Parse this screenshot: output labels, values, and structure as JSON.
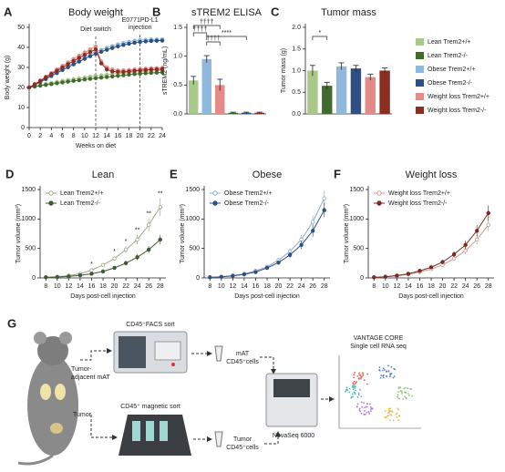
{
  "chart_data": [
    {
      "type": "line",
      "panel_label": "A",
      "title": "Body weight",
      "xlabel": "Weeks on diet",
      "ylabel": "Body weight (g)",
      "x": [
        0,
        1,
        2,
        3,
        4,
        5,
        6,
        7,
        8,
        9,
        10,
        11,
        12,
        13,
        14,
        15,
        16,
        17,
        18,
        19,
        20,
        21,
        22,
        23,
        24
      ],
      "xlim": [
        0,
        24
      ],
      "xticks": [
        0,
        2,
        4,
        6,
        8,
        10,
        12,
        14,
        16,
        18,
        20,
        22,
        24
      ],
      "ylim": [
        0,
        50
      ],
      "yticks": [
        0,
        10,
        20,
        30,
        40,
        50
      ],
      "annotations": [
        {
          "x": 12,
          "label": [
            "Diet switch"
          ]
        },
        {
          "x": 20,
          "label": [
            "E0771PD-L1",
            "injection"
          ]
        }
      ],
      "series": [
        {
          "name": "Lean Trem2+/+",
          "color": "#a9c98a",
          "values": [
            20,
            20.6,
            21.2,
            21.8,
            22.3,
            22.8,
            23.3,
            23.8,
            24.2,
            24.6,
            25,
            25.4,
            25.8,
            26.1,
            26.4,
            26.7,
            27,
            27.2,
            27.4,
            27.6,
            27.8,
            28,
            28.2,
            28.3,
            28.5
          ]
        },
        {
          "name": "Lean Trem2-/-",
          "color": "#3f6b2e",
          "values": [
            20,
            20.4,
            20.9,
            21.3,
            21.7,
            22.1,
            22.5,
            22.9,
            23.3,
            23.6,
            24,
            24.3,
            24.6,
            24.9,
            25.2,
            25.5,
            25.8,
            26.1,
            26.4,
            26.7,
            26.9,
            27.1,
            27.3,
            27.4,
            27.5
          ]
        },
        {
          "name": "Obese Trem2+/+",
          "color": "#8fb9dc",
          "values": [
            20,
            21.5,
            23,
            24.6,
            26.2,
            27.8,
            29.3,
            30.8,
            32.3,
            33.8,
            35.2,
            36.5,
            37.8,
            38.8,
            39.8,
            40.7,
            41.5,
            42.2,
            42.8,
            43.3,
            43.6,
            43.8,
            44,
            44,
            44
          ]
        },
        {
          "name": "Obese Trem2-/-",
          "color": "#2e4f86",
          "values": [
            20,
            21.3,
            22.7,
            24.2,
            25.7,
            27.2,
            28.7,
            30.1,
            31.5,
            32.9,
            34.3,
            35.6,
            36.8,
            37.8,
            38.8,
            39.7,
            40.5,
            41.2,
            41.8,
            42.3,
            42.7,
            43,
            43.2,
            43.3,
            43.4
          ]
        },
        {
          "name": "Weight loss Trem2+/+",
          "color": "#e58a86",
          "values": [
            20,
            21.8,
            23.6,
            25.4,
            27.2,
            29,
            30.8,
            32.5,
            34.2,
            35.9,
            37.5,
            39,
            40.5,
            33,
            30,
            29,
            28.5,
            28.5,
            28.7,
            29,
            29.2,
            29.4,
            29.6,
            29.7,
            29.8
          ]
        },
        {
          "name": "Weight loss Trem2-/-",
          "color": "#8b2e22",
          "values": [
            20,
            21.5,
            23.2,
            25,
            26.7,
            28.4,
            30,
            31.6,
            33.2,
            34.8,
            36.3,
            37.7,
            39,
            32,
            29,
            28,
            27.8,
            27.8,
            28,
            28.3,
            28.5,
            28.7,
            28.9,
            29,
            29.1
          ]
        }
      ]
    },
    {
      "type": "bar",
      "panel_label": "B",
      "title": "sTREM2 ELISA",
      "ylabel": "sTREM2 (ng/mL)",
      "values": [
        0.58,
        0.95,
        0.5,
        0.02,
        0.02,
        0.02
      ],
      "errors": [
        0.07,
        0.06,
        0.1,
        0.01,
        0.01,
        0.01
      ],
      "colors": [
        "#a9c98a",
        "#8fb9dc",
        "#e58a86",
        "#3f6b2e",
        "#2e4f86",
        "#8b2e22"
      ],
      "ylim": [
        0,
        1.5
      ],
      "yticks": [
        {
          "value": 0,
          "label": "0.0"
        },
        0.5,
        {
          "value": 1,
          "label": "1.0"
        },
        1.5
      ],
      "significance": [
        "††††",
        "††††",
        "††††",
        "****"
      ]
    },
    {
      "type": "bar",
      "panel_label": "C",
      "title": "Tumor mass",
      "ylabel": "Tumor mass (g)",
      "categories": [
        "Lean Trem2+/+",
        "Lean Trem2-/-",
        "Obese Trem2+/+",
        "Obese Trem2-/-",
        "Weight loss Trem2+/+",
        "Weight loss Trem2-/-"
      ],
      "values": [
        1.0,
        0.65,
        1.1,
        1.05,
        0.85,
        1.0
      ],
      "errors": [
        0.12,
        0.08,
        0.08,
        0.07,
        0.07,
        0.06
      ],
      "colors": [
        "#a9c98a",
        "#3f6b2e",
        "#8fb9dc",
        "#2e4f86",
        "#e58a86",
        "#8b2e22"
      ],
      "ylim": [
        0,
        2
      ],
      "yticks": [
        {
          "value": 0,
          "label": "0.0"
        },
        0.5,
        {
          "value": 1,
          "label": "1.0"
        },
        1.5,
        {
          "value": 2,
          "label": "2.0"
        }
      ],
      "significance": [
        "*"
      ]
    },
    {
      "type": "line",
      "panel_label": "D",
      "title": "Lean",
      "xlabel": "Days post-cell injection",
      "ylabel": "Tumor volume (mm³)",
      "x": [
        8,
        10,
        12,
        14,
        16,
        18,
        20,
        22,
        24,
        26,
        28
      ],
      "xlim": [
        7,
        29
      ],
      "xticks": [
        8,
        10,
        12,
        14,
        16,
        18,
        20,
        22,
        24,
        26,
        28
      ],
      "ylim": [
        0,
        1500
      ],
      "yticks": [
        0,
        500,
        1000,
        1500
      ],
      "legend": "upper left",
      "marks": [
        {
          "x": 16,
          "label": "*"
        },
        {
          "x": 20,
          "label": "*"
        },
        {
          "x": 22,
          "label": "*"
        },
        {
          "x": 24,
          "label": "**"
        },
        {
          "x": 26,
          "label": "**"
        },
        {
          "x": 28,
          "label": "**"
        }
      ],
      "series": [
        {
          "name": "Lean Trem2+/+",
          "color": "#9aa88a",
          "marker": "open",
          "values": [
            10,
            20,
            40,
            70,
            130,
            220,
            330,
            480,
            650,
            900,
            1200
          ],
          "errors": [
            3,
            5,
            8,
            12,
            20,
            30,
            40,
            60,
            80,
            110,
            150
          ]
        },
        {
          "name": "Lean Trem2-/-",
          "color": "#3f5a35",
          "marker": "filled",
          "values": [
            10,
            15,
            25,
            45,
            70,
            110,
            170,
            250,
            350,
            480,
            650
          ],
          "errors": [
            3,
            4,
            6,
            10,
            15,
            20,
            30,
            40,
            50,
            60,
            80
          ]
        }
      ]
    },
    {
      "type": "line",
      "panel_label": "E",
      "title": "Obese",
      "xlabel": "Days post-cell injection",
      "ylabel": "Tumor volume (mm³)",
      "x": [
        8,
        10,
        12,
        14,
        16,
        18,
        20,
        22,
        24,
        26,
        28
      ],
      "xlim": [
        7,
        29
      ],
      "xticks": [
        8,
        10,
        12,
        14,
        16,
        18,
        20,
        22,
        24,
        26,
        28
      ],
      "ylim": [
        0,
        1500
      ],
      "yticks": [
        0,
        500,
        1000,
        1500
      ],
      "legend": "upper left",
      "series": [
        {
          "name": "Obese Trem2+/+",
          "color": "#8fa9c8",
          "marker": "open",
          "values": [
            10,
            20,
            40,
            70,
            120,
            190,
            300,
            450,
            650,
            950,
            1350
          ],
          "errors": [
            3,
            5,
            8,
            12,
            18,
            28,
            40,
            55,
            80,
            110,
            130
          ]
        },
        {
          "name": "Obese Trem2-/-",
          "color": "#2e4f86",
          "marker": "filled",
          "values": [
            10,
            18,
            35,
            60,
            100,
            170,
            260,
            390,
            560,
            800,
            1150
          ],
          "errors": [
            3,
            4,
            7,
            10,
            15,
            25,
            35,
            50,
            70,
            100,
            120
          ]
        }
      ]
    },
    {
      "type": "line",
      "panel_label": "F",
      "title": "Weight loss",
      "xlabel": "Days post-cell injection",
      "ylabel": "Tumor volume (mm³)",
      "x": [
        8,
        10,
        12,
        14,
        16,
        18,
        20,
        22,
        24,
        26,
        28
      ],
      "xlim": [
        7,
        29
      ],
      "xticks": [
        8,
        10,
        12,
        14,
        16,
        18,
        20,
        22,
        24,
        26,
        28
      ],
      "ylim": [
        0,
        1500
      ],
      "yticks": [
        0,
        500,
        1000,
        1500
      ],
      "legend": "upper left",
      "series": [
        {
          "name": "Weight loss Trem2+/+",
          "color": "#c99a94",
          "marker": "open",
          "values": [
            10,
            18,
            35,
            60,
            100,
            150,
            220,
            330,
            460,
            650,
            900
          ],
          "errors": [
            3,
            4,
            6,
            10,
            14,
            20,
            30,
            40,
            60,
            80,
            110
          ]
        },
        {
          "name": "Weight loss Trem2-/-",
          "color": "#7a2a20",
          "marker": "filled",
          "values": [
            10,
            20,
            40,
            70,
            120,
            180,
            270,
            400,
            560,
            800,
            1100
          ],
          "errors": [
            3,
            5,
            8,
            12,
            18,
            25,
            35,
            50,
            70,
            100,
            130
          ]
        }
      ]
    }
  ],
  "diagram": {
    "panel_label": "G",
    "facs": "CD45⁺FACS sort",
    "magnetic": "CD45⁺ magnetic sort",
    "mat_source": [
      "Tumor-",
      "adjacent mAT"
    ],
    "tumor_source": "Tumor",
    "mat_cells": [
      "mAT",
      "CD45⁺cells"
    ],
    "tumor_cells": [
      "Tumor",
      "CD45⁺cells"
    ],
    "sequencer": "NovaSeq 6000",
    "analysis": [
      "VANTAGE CORE",
      "Single cell RNA seq"
    ]
  }
}
